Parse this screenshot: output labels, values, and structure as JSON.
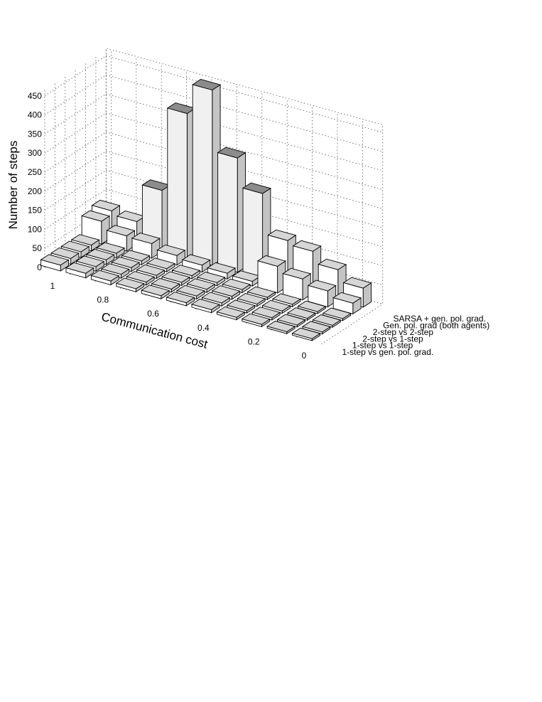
{
  "chart_data": {
    "type": "bar3d",
    "title": "",
    "xlabel": "Communication cost",
    "ylabel": "",
    "zlabel": "Number of steps",
    "x": [
      1,
      0.9,
      0.8,
      0.7,
      0.6,
      0.5,
      0.4,
      0.3,
      0.2,
      0.1,
      0
    ],
    "x_ticks": [
      "1",
      "0.8",
      "0.6",
      "0.4",
      "0.2",
      "0"
    ],
    "z_ticks": [
      "0",
      "50",
      "100",
      "150",
      "200",
      "250",
      "300",
      "350",
      "400",
      "450"
    ],
    "zlim": [
      0,
      470
    ],
    "grid": true,
    "series": [
      {
        "name": "1-step vs gen. pol. grad.",
        "values": [
          15,
          12,
          10,
          8,
          8,
          8,
          8,
          6,
          6,
          5,
          5
        ]
      },
      {
        "name": "1-step vs 1-step",
        "values": [
          15,
          12,
          10,
          8,
          8,
          8,
          8,
          6,
          6,
          5,
          5
        ]
      },
      {
        "name": "2-step vs 1-step",
        "values": [
          15,
          12,
          10,
          8,
          8,
          8,
          8,
          6,
          6,
          5,
          5
        ]
      },
      {
        "name": "2-step vs 2-step",
        "values": [
          15,
          12,
          10,
          8,
          8,
          8,
          8,
          6,
          6,
          5,
          5
        ]
      },
      {
        "name": "Gen. pol. grad (both agents)",
        "values": [
          60,
          40,
          38,
          25,
          18,
          15,
          12,
          70,
          55,
          42,
          28
        ]
      },
      {
        "name": "SARSA + gen. pol. grad.",
        "values": [
          70,
          60,
          160,
          380,
          460,
          300,
          225,
          120,
          110,
          80,
          50
        ]
      }
    ]
  }
}
